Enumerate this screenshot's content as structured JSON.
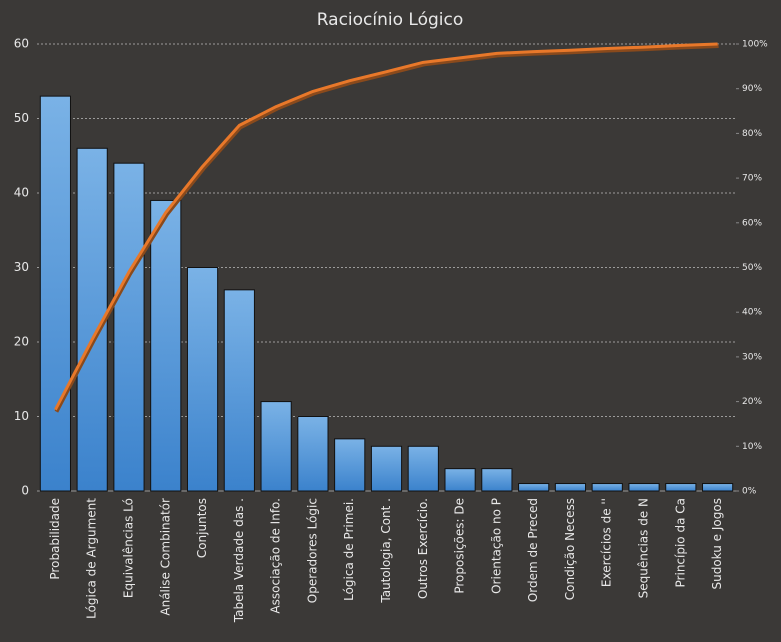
{
  "chart_data": {
    "type": "pareto",
    "title": "Raciocínio Lógico",
    "categories": [
      "Probabilidade",
      "Lógica de Argument",
      "Equivalências Ló",
      "Análise Combinatór",
      "Conjuntos",
      "Tabela Verdade das .",
      "Associação de Info.",
      "Operadores Lógic",
      "Lógica de Primei.",
      "Tautologia, Cont .",
      "Outros Exercício.",
      "Proposições: De",
      "Orientação no P",
      "Ordem de Preced",
      "Condição Necess",
      "Exercícios de ''",
      "Sequências de N",
      "Princípio da Ca",
      "Sudoku  e Jogos"
    ],
    "series": [
      {
        "color": "#5a9ee0",
        "values": [
          53,
          46,
          44,
          39,
          30,
          27,
          12,
          10,
          7,
          6,
          6,
          3,
          3,
          1,
          1,
          1,
          1,
          1,
          1
        ]
      },
      {
        "color": "#e8782a",
        "axis": "y2",
        "values": [
          18.2,
          33.9,
          49.0,
          62.3,
          72.6,
          81.8,
          86.0,
          89.4,
          91.8,
          93.8,
          95.9,
          96.9,
          97.9,
          98.3,
          98.6,
          99.0,
          99.3,
          99.7,
          100
        ]
      }
    ],
    "ylim": [
      0,
      60
    ],
    "yticks": [
      0,
      10,
      20,
      30,
      40,
      50,
      60
    ],
    "y2lim": [
      0,
      100
    ],
    "y2ticks": [
      {
        "value": 0,
        "label": "0%"
      },
      {
        "value": 10,
        "label": "10%"
      },
      {
        "value": 20,
        "label": "20%"
      },
      {
        "value": 30,
        "label": "30%"
      },
      {
        "value": 40,
        "label": "40%"
      },
      {
        "value": 50,
        "label": "50%"
      },
      {
        "value": 60,
        "label": "60%"
      },
      {
        "value": 70,
        "label": "70%"
      },
      {
        "value": 80,
        "label": "80%"
      },
      {
        "value": 90,
        "label": "90%"
      },
      {
        "value": 100,
        "label": "100%"
      }
    ],
    "grid": true
  }
}
